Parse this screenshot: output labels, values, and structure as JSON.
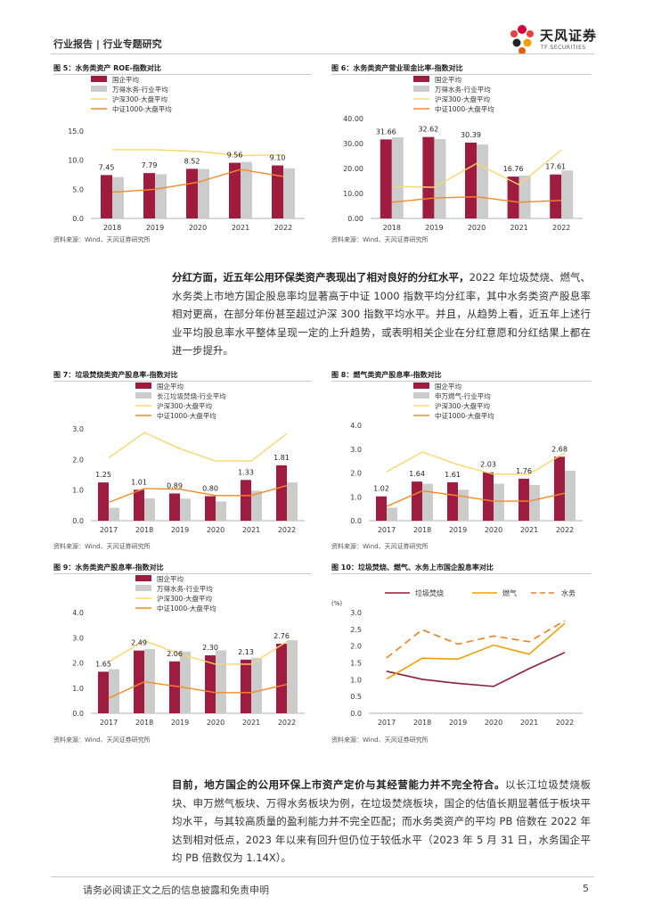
{
  "header": {
    "report_type": "行业报告 | 行业专题研究"
  },
  "logo": {
    "name_cn": "天风证券",
    "name_en": "TF SECURITIES"
  },
  "colors": {
    "c1": "#9e1c3f",
    "c2": "#cccccc",
    "c3": "#f7d76b",
    "c4": "#f58a24",
    "c10a": "#8e1c3c",
    "c10b": "#f0a000",
    "c10c": "#ee8020"
  },
  "source_text": "资料来源：Wind、天风证券研究所",
  "paragraph1": {
    "p1": "分红方面，近五年公用环保类资产表现出了相对良好的分红水平，",
    "p2": "2022 年垃圾焚烧、燃气、水务类上市地方国企股息率均显著高于中证 1000 指数平均分红率，其中水务类资产股息率相对更高，在部分年份甚至超过沪深 300 指数平均水平。并且，从趋势上看，近五年上述行业平均股息率水平整体呈现一定的上升趋势，或表明相关企业在分红意愿和分红结果上都在进一步提升。"
  },
  "paragraph2": {
    "p1": "目前，地方国企的公用环保上市资产定价与其经营能力并不完全符合。",
    "p2": "以长江垃圾焚烧板块、申万燃气板块、万得水务板块为例，在垃圾焚烧板块，国企的估值长期显著低于板块平均水平，与其较高质量的盈利能力并不完全匹配；而水务类资产的平均 PB 倍数在 2022 年达到相对低点，2023 年以来有回升但仍位于较低水平（2023 年 5 月 31 日，水务国企平均 PB 倍数仅为 1.14X）。"
  },
  "footer": {
    "disclaimer": "请务必阅读正文之后的信息披露和免责申明",
    "page": "5"
  },
  "chart_data": [
    {
      "id": "fig5",
      "type": "bar",
      "title": "图 5：水务类资产 ROE-指数对比",
      "categories": [
        "2018",
        "2019",
        "2020",
        "2021",
        "2022"
      ],
      "ylim": [
        0,
        15
      ],
      "yticks": [
        "0.0",
        "5.0",
        "10.0",
        "15.0"
      ],
      "ytick_values": [
        0,
        5,
        10,
        15
      ],
      "series": [
        {
          "name": "国企平均",
          "kind": "bar",
          "color": "#9e1c3f",
          "values": [
            7.45,
            7.79,
            8.52,
            9.56,
            9.1
          ],
          "labels": [
            "7.45",
            "7.79",
            "8.52",
            "9.56",
            "9.10"
          ]
        },
        {
          "name": "万得水务-行业平均",
          "kind": "bar",
          "color": "#cccccc",
          "values": [
            7.1,
            7.6,
            8.5,
            9.7,
            8.6
          ]
        },
        {
          "name": "沪深300-大盘平均",
          "kind": "line",
          "color": "#f7d76b",
          "values": [
            11.8,
            11.8,
            11.5,
            10.8,
            10.9
          ]
        },
        {
          "name": "中证1000-大盘平均",
          "kind": "line",
          "color": "#f58a24",
          "values": [
            4.5,
            5.0,
            6.2,
            8.4,
            7.2
          ]
        }
      ]
    },
    {
      "id": "fig6",
      "type": "bar",
      "title": "图 6：水务类资产营业现金比率-指数对比",
      "categories": [
        "2018",
        "2019",
        "2020",
        "2021",
        "2022"
      ],
      "ylim": [
        0,
        40
      ],
      "yticks": [
        "0.00",
        "10.00",
        "20.00",
        "30.00",
        "40.00"
      ],
      "ytick_values": [
        0,
        10,
        20,
        30,
        40
      ],
      "series": [
        {
          "name": "国企平均",
          "kind": "bar",
          "color": "#9e1c3f",
          "values": [
            31.66,
            32.62,
            30.39,
            16.76,
            17.61
          ],
          "labels": [
            "31.66",
            "32.62",
            "30.39",
            "16.76",
            "17.61"
          ]
        },
        {
          "name": "万得水务-行业平均",
          "kind": "bar",
          "color": "#cccccc",
          "values": [
            32.5,
            31.8,
            29.6,
            17.2,
            19.2
          ]
        },
        {
          "name": "沪深300-大盘平均",
          "kind": "line",
          "color": "#f7d76b",
          "values": [
            12.8,
            12.5,
            22.0,
            13.5,
            27.5
          ]
        },
        {
          "name": "中证1000-大盘平均",
          "kind": "line",
          "color": "#f58a24",
          "values": [
            6.5,
            8.2,
            8.7,
            6.5,
            7.2
          ]
        }
      ]
    },
    {
      "id": "fig7",
      "type": "bar",
      "title": "图 7：垃圾焚烧类资产股息率-指数对比",
      "categories": [
        "2017",
        "2018",
        "2019",
        "2020",
        "2021",
        "2022"
      ],
      "ylim": [
        0,
        3
      ],
      "yticks": [
        "0.0",
        "1.0",
        "2.0",
        "3.0"
      ],
      "ytick_values": [
        0,
        1,
        2,
        3
      ],
      "series": [
        {
          "name": "国企平均",
          "kind": "bar",
          "color": "#9e1c3f",
          "values": [
            1.25,
            1.01,
            0.89,
            0.8,
            1.33,
            1.81
          ],
          "labels": [
            "1.25",
            "1.01",
            "0.89",
            "0.80",
            "1.33",
            "1.81"
          ]
        },
        {
          "name": "长江垃圾焚烧-行业平均",
          "kind": "bar",
          "color": "#cccccc",
          "values": [
            0.42,
            0.73,
            0.72,
            0.63,
            0.98,
            1.25
          ]
        },
        {
          "name": "沪深300-大盘平均",
          "kind": "line",
          "color": "#f7d76b",
          "values": [
            2.05,
            2.88,
            2.35,
            1.95,
            1.95,
            2.85
          ]
        },
        {
          "name": "中证1000-大盘平均",
          "kind": "line",
          "color": "#f58a24",
          "values": [
            0.6,
            1.05,
            1.03,
            0.82,
            0.82,
            1.15
          ]
        }
      ]
    },
    {
      "id": "fig8",
      "type": "bar",
      "title": "图 8：燃气类资产股息率-指数对比",
      "categories": [
        "2017",
        "2018",
        "2019",
        "2020",
        "2021",
        "2022"
      ],
      "ylim": [
        0,
        4
      ],
      "yticks": [
        "0.0",
        "1.0",
        "2.0",
        "3.0",
        "4.0"
      ],
      "ytick_values": [
        0,
        1,
        2,
        3,
        4
      ],
      "series": [
        {
          "name": "国企平均",
          "kind": "bar",
          "color": "#9e1c3f",
          "values": [
            1.02,
            1.64,
            1.61,
            2.03,
            1.76,
            2.68
          ],
          "labels": [
            "1.02",
            "1.64",
            "1.61",
            "2.03",
            "1.76",
            "2.68"
          ]
        },
        {
          "name": "申万燃气-行业平均",
          "kind": "bar",
          "color": "#cccccc",
          "values": [
            0.55,
            1.55,
            1.3,
            1.55,
            1.5,
            2.1
          ]
        },
        {
          "name": "沪深300-大盘平均",
          "kind": "line",
          "color": "#f7d76b",
          "values": [
            2.05,
            2.88,
            2.35,
            1.95,
            1.95,
            2.85
          ]
        },
        {
          "name": "中证1000-大盘平均",
          "kind": "line",
          "color": "#f58a24",
          "values": [
            0.6,
            1.25,
            1.05,
            0.82,
            0.82,
            1.15
          ]
        }
      ]
    },
    {
      "id": "fig9",
      "type": "bar",
      "title": "图 9：水务类资产股息率-指数对比",
      "categories": [
        "2017",
        "2018",
        "2019",
        "2020",
        "2021",
        "2022"
      ],
      "ylim": [
        0,
        4
      ],
      "yticks": [
        "0.0",
        "1.0",
        "2.0",
        "3.0",
        "4.0"
      ],
      "ytick_values": [
        0,
        1,
        2,
        3,
        4
      ],
      "series": [
        {
          "name": "国企平均",
          "kind": "bar",
          "color": "#9e1c3f",
          "values": [
            1.65,
            2.49,
            2.06,
            2.3,
            2.13,
            2.76
          ],
          "labels": [
            "1.65",
            "2.49",
            "2.06",
            "2.30",
            "2.13",
            "2.76"
          ]
        },
        {
          "name": "万得水务-行业平均",
          "kind": "bar",
          "color": "#cccccc",
          "values": [
            1.75,
            2.55,
            2.45,
            2.5,
            2.2,
            2.9
          ]
        },
        {
          "name": "沪深300-大盘平均",
          "kind": "line",
          "color": "#f7d76b",
          "values": [
            2.05,
            2.88,
            2.35,
            1.95,
            1.95,
            2.85
          ]
        },
        {
          "name": "中证1000-大盘平均",
          "kind": "line",
          "color": "#f58a24",
          "values": [
            0.6,
            1.25,
            1.05,
            0.82,
            0.82,
            1.15
          ]
        }
      ]
    },
    {
      "id": "fig10",
      "type": "line",
      "title": "图 10：垃圾焚烧、燃气、水务上市国企股息率对比",
      "ylabel": "(%)",
      "categories": [
        "2017",
        "2018",
        "2019",
        "2020",
        "2021",
        "2022"
      ],
      "ylim": [
        0,
        3
      ],
      "yticks": [
        "0.0",
        "0.5",
        "1.0",
        "1.5",
        "2.0",
        "2.5",
        "3.0"
      ],
      "ytick_values": [
        0,
        0.5,
        1,
        1.5,
        2,
        2.5,
        3
      ],
      "series": [
        {
          "name": "垃圾焚烧",
          "kind": "line",
          "color": "#8e1c3c",
          "values": [
            1.25,
            1.01,
            0.89,
            0.8,
            1.33,
            1.81
          ]
        },
        {
          "name": "燃气",
          "kind": "line",
          "color": "#f0a000",
          "values": [
            1.02,
            1.64,
            1.61,
            2.03,
            1.76,
            2.68
          ]
        },
        {
          "name": "水务",
          "kind": "dash",
          "color": "#ee8020",
          "values": [
            1.65,
            2.49,
            2.06,
            2.3,
            2.13,
            2.76
          ]
        }
      ]
    }
  ]
}
